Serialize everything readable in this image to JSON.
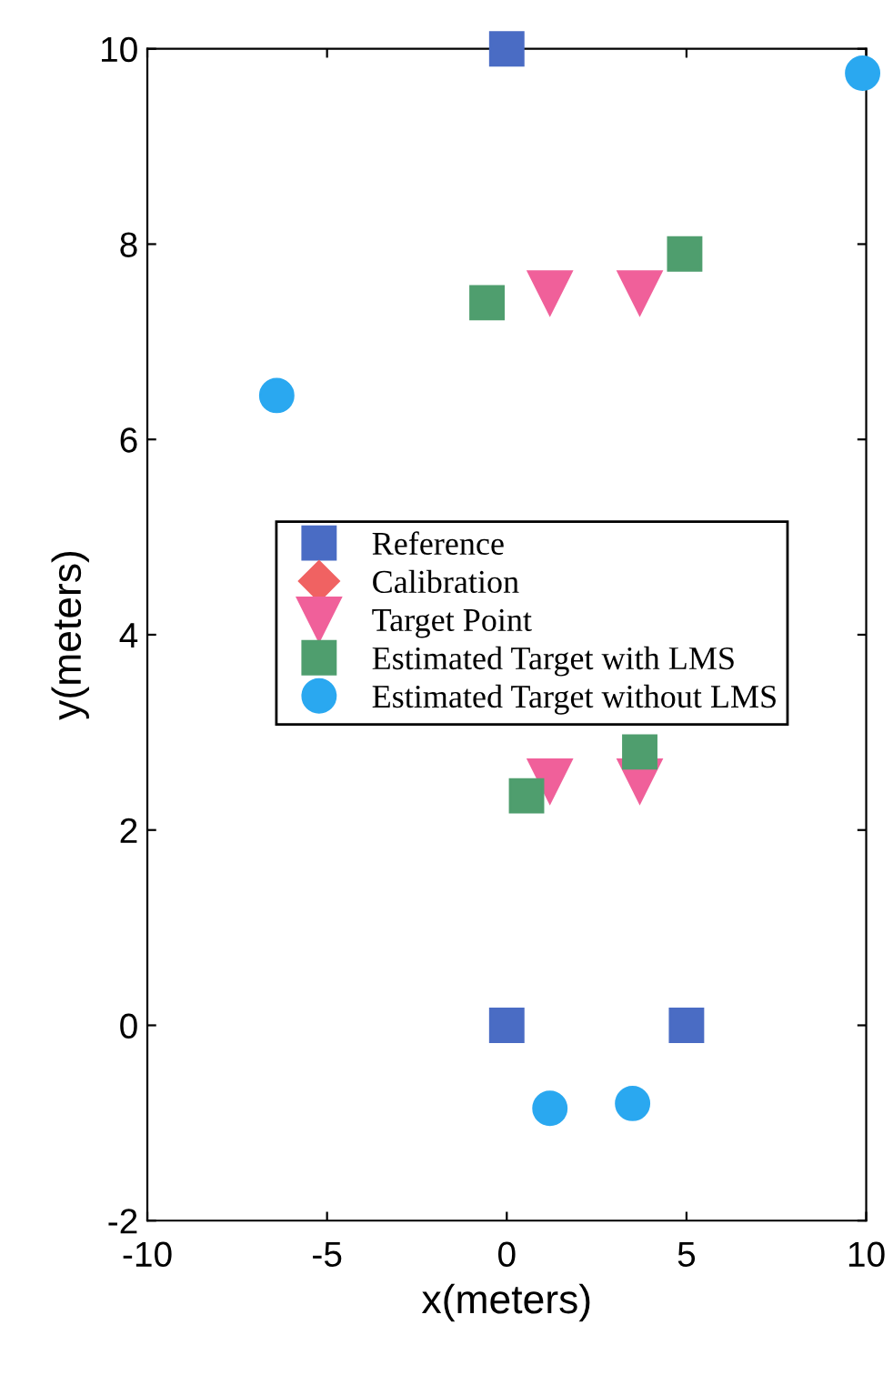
{
  "chart_data": {
    "type": "scatter",
    "xlabel": "x(meters)",
    "ylabel": "y(meters)",
    "xlim": [
      -10,
      10
    ],
    "ylim": [
      -2,
      10
    ],
    "xticks": [
      -10,
      -5,
      0,
      5,
      10
    ],
    "yticks": [
      -2,
      0,
      2,
      4,
      6,
      8,
      10
    ],
    "grid": false,
    "legend": "center",
    "series": [
      {
        "name": "Reference",
        "color": "#4a6cc4",
        "marker": "square",
        "x": [
          0,
          0,
          5
        ],
        "values": [
          10,
          0,
          0
        ]
      },
      {
        "name": "Calibration",
        "color": "#f06262",
        "marker": "diamond"
      },
      {
        "name": "Target Point",
        "color": "#f0609a",
        "marker": "triangle",
        "x": [
          1.2,
          3.7,
          1.2,
          3.7
        ],
        "values": [
          7.5,
          7.5,
          2.5,
          2.5
        ]
      },
      {
        "name": "Estimated Target with LMS",
        "color": "#4f9e6e",
        "marker": "square",
        "x": [
          -0.55,
          4.95,
          0.55,
          3.7
        ],
        "values": [
          7.4,
          7.9,
          2.35,
          2.8
        ]
      },
      {
        "name": "Estimated Target without LMS",
        "color": "#2aa8f0",
        "marker": "circle",
        "x": [
          -6.4,
          9.9,
          1.2,
          3.5
        ],
        "values": [
          6.45,
          9.75,
          -0.85,
          -0.8
        ]
      }
    ]
  }
}
